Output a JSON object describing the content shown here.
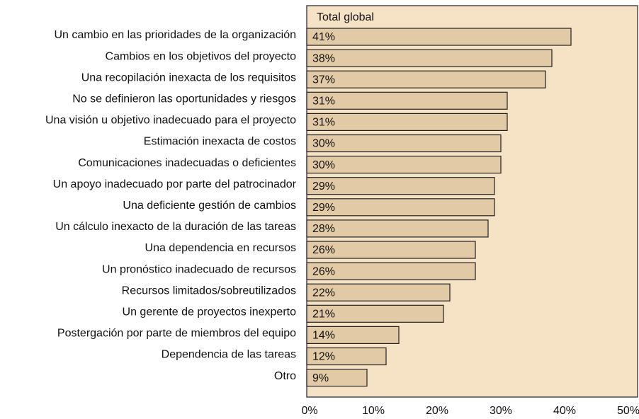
{
  "chart_data": {
    "type": "barh",
    "categories": [
      "Un cambio en las prioridades de la organización",
      "Cambios en los objetivos del proyecto",
      "Una recopilación inexacta de los requisitos",
      "No se definieron las oportunidades y riesgos",
      "Una visión u objetivo inadecuado para el proyecto",
      "Estimación inexacta de costos",
      "Comunicaciones inadecuadas o deficientes",
      "Un apoyo inadecuado por parte del patrocinador",
      "Una deficiente gestión de cambios",
      "Un cálculo inexacto de la duración de las tareas",
      "Una dependencia en recursos",
      "Un pronóstico inadecuado de recursos",
      "Recursos limitados/sobreutilizados",
      "Un gerente de proyectos inexperto",
      "Postergación por parte de miembros del equipo",
      "Dependencia de las tareas",
      "Otro"
    ],
    "series": [
      {
        "name": "Total global",
        "color": "#e2caa6",
        "values": [
          41,
          38,
          37,
          31,
          31,
          30,
          30,
          29,
          29,
          28,
          26,
          26,
          22,
          21,
          14,
          12,
          9
        ],
        "value_labels": [
          "41%",
          "38%",
          "37%",
          "31%",
          "31%",
          "30%",
          "30%",
          "29%",
          "29%",
          "28%",
          "26%",
          "26%",
          "22%",
          "21%",
          "14%",
          "12%",
          "9%"
        ]
      }
    ],
    "xlim": [
      0,
      50
    ],
    "xticks": [
      {
        "value": 0,
        "label": "0%"
      },
      {
        "value": 10,
        "label": "10%"
      },
      {
        "value": 20,
        "label": "20%"
      },
      {
        "value": 30,
        "label": "30%"
      },
      {
        "value": 40,
        "label": "40%"
      },
      {
        "value": 50,
        "label": "50%"
      }
    ],
    "background": "#f6e2c5"
  }
}
